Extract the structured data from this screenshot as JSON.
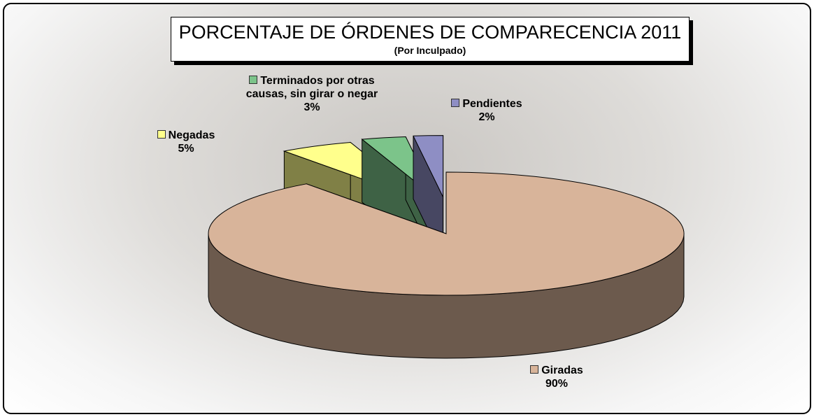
{
  "chart_data": {
    "type": "pie3d",
    "title": "PORCENTAJE DE ÓRDENES DE COMPARECENCIA 2011",
    "subtitle": "(Por Inculpado)",
    "categories": [
      "Giradas",
      "Negadas",
      "Terminados por otras causas, sin girar o negar",
      "Pendientes"
    ],
    "values": [
      90,
      5,
      3,
      2
    ],
    "value_labels": [
      "90%",
      "5%",
      "3%",
      "2%"
    ],
    "colors": [
      "#d8b49a",
      "#ffff8c",
      "#7cc48a",
      "#8e8ec4"
    ]
  }
}
